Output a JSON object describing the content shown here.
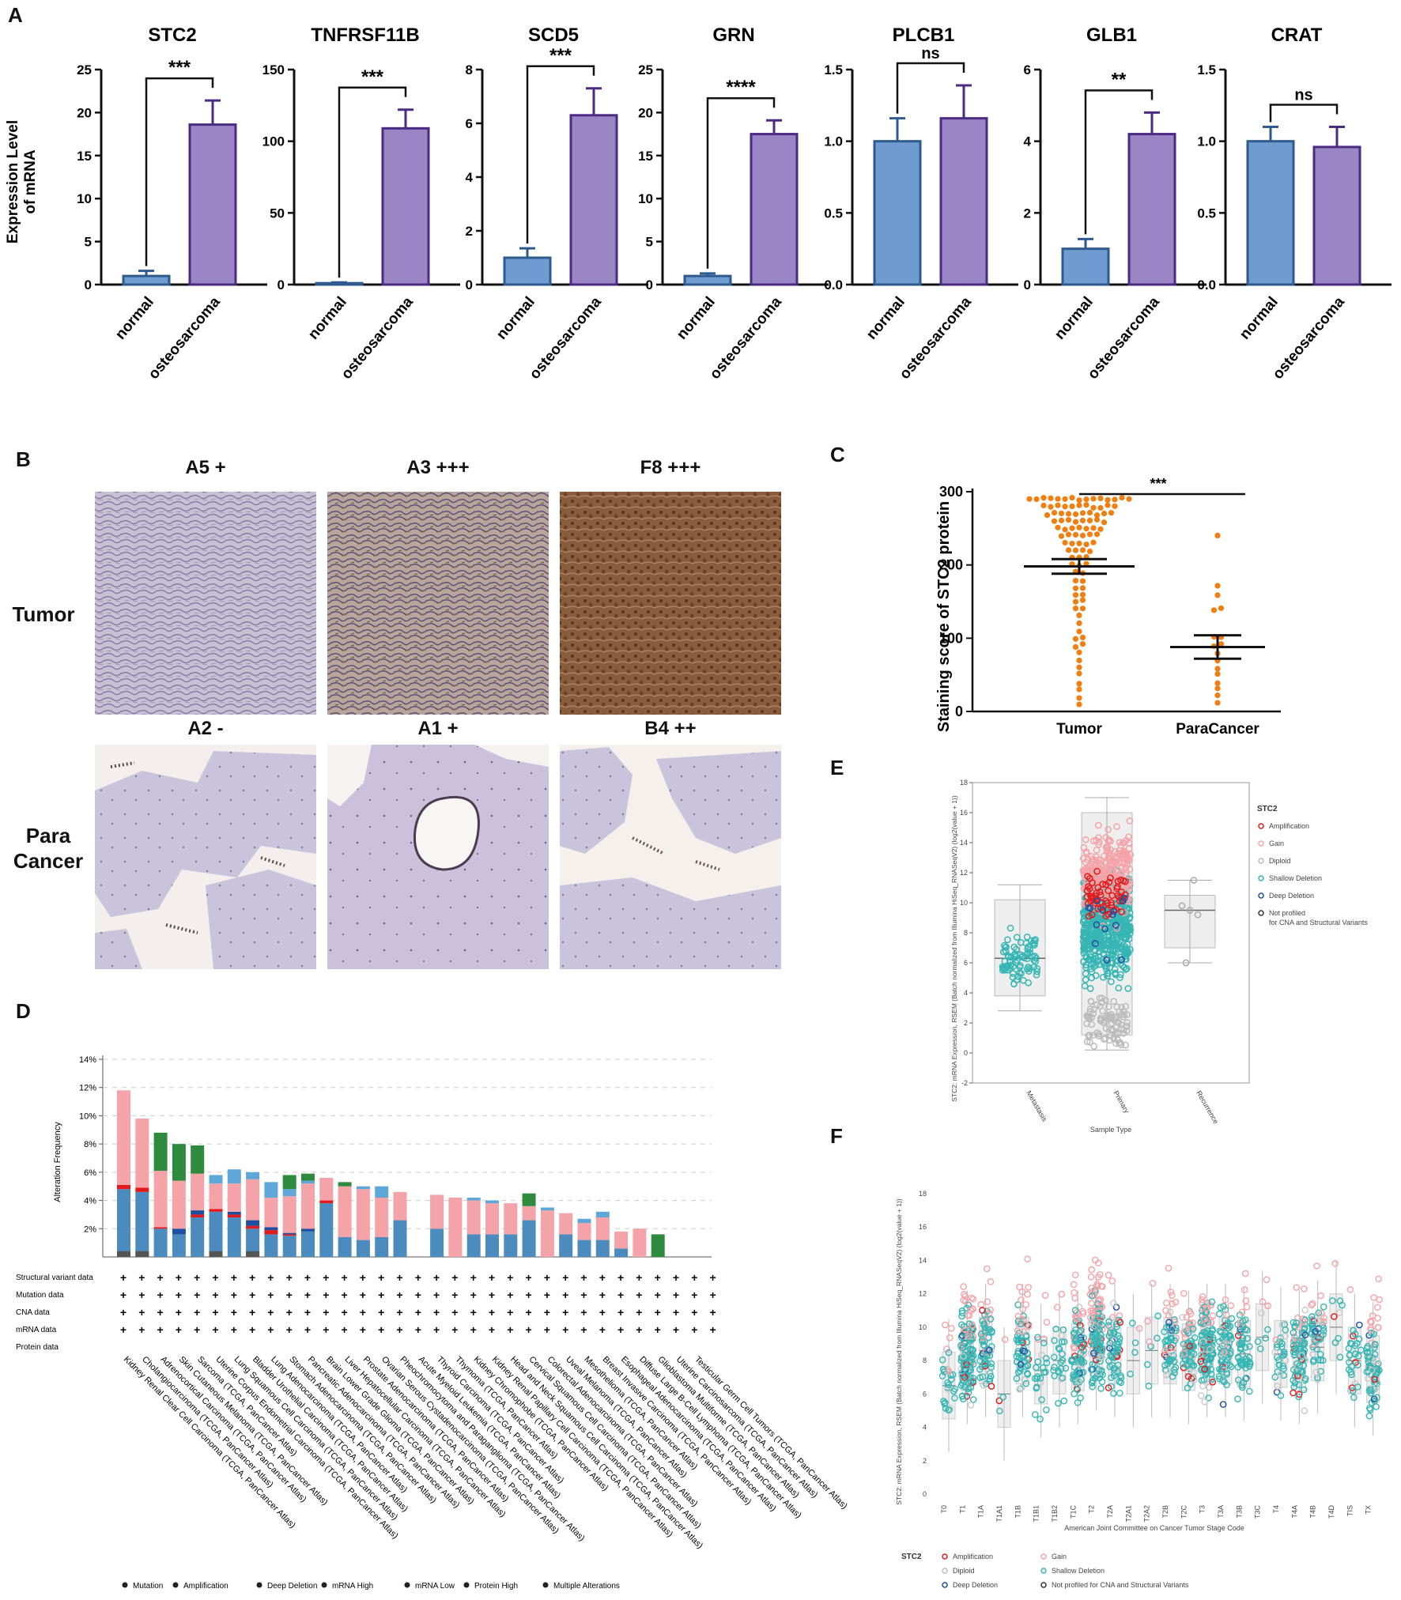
{
  "panels": {
    "A": "A",
    "B": "B",
    "C": "C",
    "D": "D",
    "E": "E",
    "F": "F"
  },
  "panelA": {
    "ylabel_line1": "Expression Level",
    "ylabel_line2": "of mRNA",
    "groups": [
      "normal",
      "osteosarcoma"
    ],
    "colors": {
      "normal": "#6f9bd1",
      "normal_edge": "#2e5a8e",
      "tumor": "#9a86c4",
      "tumor_edge": "#4b2a84"
    }
  },
  "chart_data": [
    {
      "type": "bar",
      "title": "STC2",
      "categories": [
        "normal",
        "osteosarcoma"
      ],
      "values": [
        1.0,
        18.6
      ],
      "errors": [
        0.6,
        2.8
      ],
      "ylim": [
        0,
        25
      ],
      "yticks": [
        0,
        5,
        10,
        15,
        20,
        25
      ],
      "significance": "***",
      "ylabel": "Expression Level of mRNA"
    },
    {
      "type": "bar",
      "title": "TNFRSF11B",
      "categories": [
        "normal",
        "osteosarcoma"
      ],
      "values": [
        1.0,
        109
      ],
      "errors": [
        0.5,
        13
      ],
      "ylim": [
        0,
        150
      ],
      "yticks": [
        0,
        50,
        100,
        150
      ],
      "significance": "***"
    },
    {
      "type": "bar",
      "title": "SCD5",
      "categories": [
        "normal",
        "osteosarcoma"
      ],
      "values": [
        1.0,
        6.3
      ],
      "errors": [
        0.35,
        1.0
      ],
      "ylim": [
        0,
        8
      ],
      "yticks": [
        0,
        2,
        4,
        6,
        8
      ],
      "significance": "***"
    },
    {
      "type": "bar",
      "title": "GRN",
      "categories": [
        "normal",
        "osteosarcoma"
      ],
      "values": [
        1.0,
        17.5
      ],
      "errors": [
        0.3,
        1.6
      ],
      "ylim": [
        0,
        25
      ],
      "yticks": [
        0,
        5,
        10,
        15,
        20,
        25
      ],
      "significance": "****"
    },
    {
      "type": "bar",
      "title": "PLCB1",
      "categories": [
        "normal",
        "osteosarcoma"
      ],
      "values": [
        1.0,
        1.16
      ],
      "errors": [
        0.16,
        0.23
      ],
      "ylim": [
        0,
        1.5
      ],
      "yticks": [
        "0.0",
        "0.5",
        "1.0",
        "1.5"
      ],
      "significance": "ns"
    },
    {
      "type": "bar",
      "title": "GLB1",
      "categories": [
        "normal",
        "osteosarcoma"
      ],
      "values": [
        1.0,
        4.2
      ],
      "errors": [
        0.27,
        0.6
      ],
      "ylim": [
        0,
        6
      ],
      "yticks": [
        0,
        2,
        4,
        6
      ],
      "significance": "**"
    },
    {
      "type": "bar",
      "title": "CRAT",
      "categories": [
        "normal",
        "osteosarcoma"
      ],
      "values": [
        1.0,
        0.96
      ],
      "errors": [
        0.1,
        0.14
      ],
      "ylim": [
        0,
        1.5
      ],
      "yticks": [
        "0.0",
        "0.5",
        "1.0",
        "1.5"
      ],
      "significance": "ns"
    },
    {
      "type": "scatter",
      "title": "",
      "ylabel": "Staining score of STC2 protein",
      "categories": [
        "Tumor",
        "ParaCancer"
      ],
      "ylim": [
        0,
        300
      ],
      "yticks": [
        0,
        100,
        200,
        300
      ],
      "significance": "***",
      "means": [
        198,
        88
      ],
      "sem": [
        10,
        16
      ],
      "tumor_values": [
        290,
        290,
        290,
        290,
        290,
        290,
        290,
        290,
        290,
        290,
        290,
        290,
        290,
        290,
        290,
        280,
        280,
        280,
        280,
        280,
        280,
        280,
        280,
        280,
        280,
        280,
        270,
        270,
        270,
        270,
        270,
        270,
        270,
        270,
        270,
        270,
        260,
        260,
        260,
        260,
        260,
        260,
        260,
        260,
        250,
        250,
        250,
        250,
        250,
        250,
        250,
        240,
        240,
        240,
        240,
        240,
        240,
        230,
        230,
        230,
        230,
        230,
        220,
        220,
        220,
        220,
        210,
        210,
        210,
        200,
        200,
        200,
        190,
        190,
        180,
        180,
        170,
        170,
        160,
        160,
        150,
        150,
        140,
        140,
        130,
        120,
        110,
        100,
        100,
        90,
        90,
        80,
        70,
        60,
        50,
        40,
        30,
        20,
        10
      ],
      "paracancer_values": [
        240,
        170,
        160,
        140,
        140,
        100,
        100,
        90,
        80,
        70,
        60,
        50,
        40,
        30,
        20,
        10,
        90
      ]
    },
    {
      "type": "bar",
      "title": "",
      "ylabel": "Alteration Frequency",
      "ylim": [
        0,
        14
      ],
      "yticks": [
        "2%",
        "4%",
        "6%",
        "8%",
        "10%",
        "12%",
        "14%"
      ],
      "series_names": [
        "Mutation",
        "Amplification",
        "Deep Deletion",
        "mRNA High",
        "mRNA Low",
        "Protein High",
        "Multiple Alterations"
      ],
      "categories": [
        "Kidney Renal Clear Cell Carcinoma (TCGA, PanCancer Atlas)",
        "Cholangiocarcinoma (TCGA, PanCancer Atlas)",
        "Adrenocortical Carcinoma (TCGA, PanCancer Atlas)",
        "Skin Cutaneous Melanoma (TCGA, PanCancer Atlas)",
        "Sarcoma (TCGA, PanCancer Atlas)",
        "Uterine Corpus Endometrial Carcinoma (TCGA, PanCancer Atlas)",
        "Lung Squamous Cell Carcinoma (TCGA, PanCancer Atlas)",
        "Bladder Urothelial Carcinoma (TCGA, PanCancer Atlas)",
        "Lung Adenocarcinoma (TCGA, PanCancer Atlas)",
        "Stomach Adenocarcinoma (TCGA, PanCancer Atlas)",
        "Pancreatic Adenocarcinoma (TCGA, PanCancer Atlas)",
        "Brain Lower Grade Glioma (TCGA, PanCancer Atlas)",
        "Liver Hepatocellular Carcinoma (TCGA, PanCancer Atlas)",
        "Prostate Adenocarcinoma (TCGA, PanCancer Atlas)",
        "Ovarian Serous Cystadenocarcinoma (TCGA, PanCancer Atlas)",
        "Pheochromocytoma and Paraganglioma (TCGA, PanCancer Atlas)",
        "Acute Myeloid Leukemia (TCGA, PanCancer Atlas)",
        "Thyroid Carcinoma (TCGA, PanCancer Atlas)",
        "Thymoma (TCGA, PanCancer Atlas)",
        "Kidney Chromophobe (TCGA, PanCancer Atlas)",
        "Kidney Renal Papillary Cell Carcinoma (TCGA, PanCancer Atlas)",
        "Head and Neck Squamous Cell Carcinoma (TCGA, PanCancer Atlas)",
        "Cervical Squamous Cell Carcinoma (TCGA, PanCancer Atlas)",
        "Colorectal Adenocarcinoma (TCGA, PanCancer Atlas)",
        "Uveal Melanoma (TCGA, PanCancer Atlas)",
        "Mesothelioma (TCGA, PanCancer Atlas)",
        "Breast Invasive Carcinoma (TCGA, PanCancer Atlas)",
        "Esophageal Adenocarcinoma (TCGA, PanCancer Atlas)",
        "Diffuse Large B-Cell Lymphoma (TCGA, PanCancer Atlas)",
        "Glioblastoma Multiforme (TCGA, PanCancer Atlas)",
        "Uterine Carcinosarcoma (TCGA, PanCancer Atlas)",
        "Testicular Germ Cell Tumors (TCGA, PanCancer Atlas)"
      ],
      "stacks": [
        [
          4.8,
          0.3,
          0,
          6.7,
          0,
          0
        ],
        [
          4.6,
          0.3,
          0,
          4.9,
          0,
          0
        ],
        [
          2.0,
          0.1,
          0,
          4.0,
          0,
          2.7
        ],
        [
          1.6,
          0,
          0.4,
          3.4,
          0,
          2.6
        ],
        [
          2.8,
          0.2,
          0.3,
          2.6,
          0,
          2.0
        ],
        [
          3.2,
          0.2,
          0,
          1.8,
          0.6,
          0
        ],
        [
          2.8,
          0.2,
          0.2,
          2.0,
          1.0,
          0
        ],
        [
          2.0,
          0.2,
          0.4,
          2.9,
          0.5,
          0
        ],
        [
          1.6,
          0.3,
          0.2,
          2.1,
          1.1,
          0
        ],
        [
          1.5,
          0.1,
          0.1,
          2.6,
          0.5,
          1.0
        ],
        [
          1.8,
          0,
          0.2,
          3.2,
          0.2,
          0.5
        ],
        [
          3.8,
          0.2,
          0,
          1.6,
          0,
          0
        ],
        [
          1.4,
          0,
          0,
          3.6,
          0,
          0.3
        ],
        [
          1.2,
          0,
          0,
          3.6,
          0.2,
          0
        ],
        [
          1.4,
          0,
          0,
          2.8,
          0.8,
          0
        ],
        [
          2.6,
          0,
          0,
          2.0,
          0,
          0
        ],
        [
          0,
          0,
          0,
          0,
          0,
          0
        ],
        [
          2.0,
          0,
          0,
          2.4,
          0,
          0
        ],
        [
          0,
          0,
          0,
          4.2,
          0,
          0
        ],
        [
          1.6,
          0,
          0,
          2.4,
          0.2,
          0
        ],
        [
          1.6,
          0,
          0,
          2.2,
          0.2,
          0
        ],
        [
          1.6,
          0,
          0,
          2.2,
          0,
          0
        ],
        [
          2.6,
          0,
          0,
          1.0,
          0,
          0.9
        ],
        [
          0,
          0,
          0,
          3.3,
          0.2,
          0
        ],
        [
          1.6,
          0,
          0,
          1.5,
          0,
          0
        ],
        [
          1.2,
          0,
          0,
          1.2,
          0.3,
          0
        ],
        [
          1.2,
          0,
          0,
          1.6,
          0.4,
          0
        ],
        [
          0.6,
          0,
          0,
          1.2,
          0,
          0
        ],
        [
          0,
          0,
          0,
          2.0,
          0,
          0
        ],
        [
          0,
          0,
          0,
          0,
          0,
          1.6
        ],
        [
          0,
          0,
          0,
          0,
          0,
          0
        ],
        [
          0,
          0,
          0,
          0,
          0,
          0
        ]
      ],
      "row_labels": [
        "Structural variant data",
        "Mutation data",
        "CNA data",
        "mRNA data",
        "Protein data"
      ]
    },
    {
      "type": "scatter",
      "title": "",
      "ylabel": "STC2: mRNA Expression, RSEM (Batch normalized from Illumina HiSeq_RNASeqV2) (log2(value + 1))",
      "xlabel": "Sample Type",
      "categories": [
        "Metastasis",
        "Primary",
        "Recurrence"
      ],
      "ylim": [
        -2,
        18
      ],
      "yticks": [
        -2,
        0,
        2,
        4,
        6,
        8,
        10,
        12,
        14,
        16,
        18
      ],
      "medians": [
        6.3,
        8.5,
        9.5
      ],
      "ranges": [
        [
          2.8,
          11.2
        ],
        [
          0.2,
          17
        ],
        [
          6,
          11.5
        ]
      ],
      "legend_title": "STC2",
      "legend": [
        "Amplification",
        "Gain",
        "Diploid",
        "Shallow Deletion",
        "Deep Deletion",
        "Not profiled",
        "for CNA and Structural Variants"
      ]
    },
    {
      "type": "scatter",
      "title": "",
      "ylabel": "STC2: mRNA Expression, RSEM (Batch normalized from Illumina HiSeq_RNASeqV2) (log2(value + 1))",
      "xlabel": "American Joint Committee on Cancer Tumor Stage Code",
      "categories": [
        "T0",
        "T1",
        "T1A",
        "T1A1",
        "T1B",
        "T1B1",
        "T1B2",
        "T1C",
        "T2",
        "T2A",
        "T2A1",
        "T2A2",
        "T2B",
        "T2C",
        "T3",
        "T3A",
        "T3B",
        "T3C",
        "T4",
        "T4A",
        "T4B",
        "T4D",
        "TIS",
        "TX"
      ],
      "ylim": [
        0,
        18
      ],
      "yticks": [
        0,
        2,
        4,
        6,
        8,
        10,
        12,
        14,
        16,
        18
      ],
      "medians": [
        6.5,
        8.2,
        8.6,
        6,
        8.6,
        7.4,
        8,
        8.2,
        9,
        8.6,
        8,
        8.6,
        8.6,
        8.2,
        8.6,
        8.6,
        8.4,
        9.4,
        8.4,
        8.2,
        8.8,
        10,
        8,
        7.5
      ],
      "legend_title": "STC2",
      "legend": [
        "Amplification",
        "Gain",
        "Diploid",
        "Shallow Deletion",
        "Deep Deletion",
        "Not profiled for CNA and Structural Variants"
      ]
    }
  ],
  "panelB": {
    "tumor_label": "Tumor",
    "para_label_1": "Para",
    "para_label_2": "Cancer",
    "top_labels": [
      "A5  +",
      "A3 +++",
      "F8 +++"
    ],
    "bottom_labels": [
      "A2 -",
      "A1 +",
      "B4 ++"
    ]
  },
  "panelD": {
    "legend": [
      "Mutation",
      "Amplification",
      "Deep Deletion",
      "mRNA High",
      "mRNA Low",
      "Protein High",
      "Multiple Alterations"
    ],
    "marker": "+"
  },
  "colors": {
    "mut": "#4c8bbd",
    "amp": "#e31a1c",
    "del": "#1f4fa0",
    "high": "#f4a3a8",
    "low": "#5da7d9",
    "multi": "#2e8b3e",
    "orange": "#f07e10",
    "teal": "#35b6b4"
  }
}
